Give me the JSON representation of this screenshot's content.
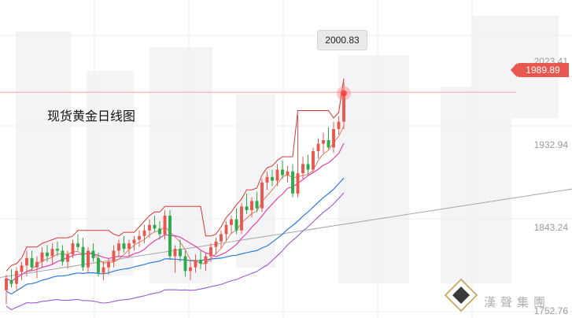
{
  "chart_data": {
    "type": "candlestick",
    "title": "现货黄金日线图",
    "price_axis_labels": [
      "2023.41",
      "1932.94",
      "1843.24",
      "1752.76"
    ],
    "current_price_label": "1989.89",
    "peak_label": "2000.83",
    "ylim": [
      1745,
      2090
    ],
    "x_count": 72,
    "candles": [
      [
        1775,
        1792,
        1760,
        1788
      ],
      [
        1786,
        1798,
        1778,
        1782
      ],
      [
        1782,
        1800,
        1774,
        1796
      ],
      [
        1795,
        1806,
        1786,
        1802
      ],
      [
        1802,
        1818,
        1790,
        1810
      ],
      [
        1810,
        1818,
        1796,
        1800
      ],
      [
        1800,
        1812,
        1788,
        1806
      ],
      [
        1806,
        1822,
        1800,
        1816
      ],
      [
        1816,
        1824,
        1806,
        1812
      ],
      [
        1812,
        1826,
        1804,
        1820
      ],
      [
        1820,
        1828,
        1812,
        1818
      ],
      [
        1818,
        1824,
        1802,
        1806
      ],
      [
        1806,
        1818,
        1798,
        1814
      ],
      [
        1814,
        1830,
        1810,
        1826
      ],
      [
        1826,
        1836,
        1818,
        1822
      ],
      [
        1822,
        1832,
        1796,
        1800
      ],
      [
        1800,
        1822,
        1794,
        1818
      ],
      [
        1818,
        1826,
        1806,
        1810
      ],
      [
        1810,
        1816,
        1790,
        1794
      ],
      [
        1794,
        1806,
        1786,
        1800
      ],
      [
        1800,
        1810,
        1792,
        1806
      ],
      [
        1806,
        1824,
        1800,
        1818
      ],
      [
        1818,
        1830,
        1812,
        1826
      ],
      [
        1826,
        1834,
        1816,
        1820
      ],
      [
        1820,
        1830,
        1812,
        1826
      ],
      [
        1826,
        1834,
        1818,
        1830
      ],
      [
        1830,
        1840,
        1822,
        1834
      ],
      [
        1834,
        1846,
        1826,
        1840
      ],
      [
        1840,
        1852,
        1832,
        1846
      ],
      [
        1846,
        1856,
        1838,
        1842
      ],
      [
        1842,
        1850,
        1830,
        1836
      ],
      [
        1836,
        1862,
        1830,
        1856
      ],
      [
        1856,
        1862,
        1808,
        1812
      ],
      [
        1812,
        1824,
        1794,
        1820
      ],
      [
        1820,
        1830,
        1806,
        1812
      ],
      [
        1812,
        1818,
        1790,
        1796
      ],
      [
        1796,
        1808,
        1786,
        1800
      ],
      [
        1800,
        1814,
        1794,
        1808
      ],
      [
        1808,
        1818,
        1798,
        1804
      ],
      [
        1804,
        1816,
        1796,
        1812
      ],
      [
        1812,
        1826,
        1806,
        1822
      ],
      [
        1822,
        1832,
        1814,
        1828
      ],
      [
        1828,
        1840,
        1820,
        1836
      ],
      [
        1836,
        1850,
        1828,
        1846
      ],
      [
        1846,
        1856,
        1836,
        1852
      ],
      [
        1852,
        1864,
        1836,
        1840
      ],
      [
        1840,
        1870,
        1836,
        1866
      ],
      [
        1866,
        1880,
        1858,
        1862
      ],
      [
        1862,
        1876,
        1854,
        1872
      ],
      [
        1872,
        1882,
        1860,
        1864
      ],
      [
        1864,
        1896,
        1860,
        1892
      ],
      [
        1892,
        1904,
        1884,
        1898
      ],
      [
        1898,
        1906,
        1888,
        1894
      ],
      [
        1894,
        1912,
        1888,
        1906
      ],
      [
        1906,
        1916,
        1896,
        1900
      ],
      [
        1900,
        1910,
        1892,
        1904
      ],
      [
        1904,
        1912,
        1876,
        1880
      ],
      [
        1880,
        1966,
        1876,
        1902
      ],
      [
        1902,
        1920,
        1896,
        1912
      ],
      [
        1912,
        1922,
        1900,
        1906
      ],
      [
        1906,
        1930,
        1902,
        1926
      ],
      [
        1926,
        1940,
        1918,
        1934
      ],
      [
        1934,
        1946,
        1924,
        1938
      ],
      [
        1938,
        1952,
        1928,
        1930
      ],
      [
        1930,
        1958,
        1924,
        1950
      ],
      [
        1950,
        1964,
        1944,
        1958
      ],
      [
        1958,
        2000.83,
        1950,
        1989.89
      ]
    ]
  },
  "brand": "漢聲集團",
  "colors": {
    "up": "#e8584f",
    "down": "#2eaa4a",
    "ma5": "#e07a5f",
    "ma10": "#e040b0",
    "ma20": "#2a7ad8",
    "lower": "#9b59d0",
    "trend": "#a6a6a6"
  }
}
